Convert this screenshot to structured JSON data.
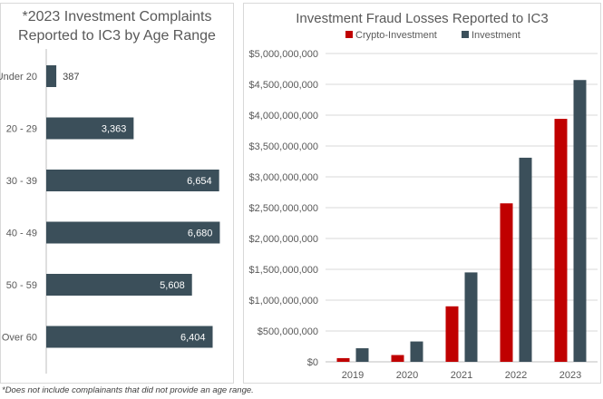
{
  "chart_data": [
    {
      "type": "bar",
      "orientation": "horizontal",
      "title": "*2023 Investment Complaints Reported to IC3 by Age Range",
      "categories": [
        "Under 20",
        "20 - 29",
        "30 - 39",
        "40 - 49",
        "50 - 59",
        "Over 60"
      ],
      "values": [
        387,
        3363,
        6654,
        6680,
        5608,
        6404
      ],
      "data_labels": [
        "387",
        "3,363",
        "6,654",
        "6,680",
        "5,608",
        "6,404"
      ],
      "xlim": [
        0,
        6700
      ],
      "grid": false,
      "colors": {
        "bar": "#3b4f5a"
      }
    },
    {
      "type": "bar",
      "title": "Investment Fraud Losses Reported to IC3",
      "categories": [
        "2019",
        "2020",
        "2021",
        "2022",
        "2023"
      ],
      "series": [
        {
          "name": "Crypto-Investment",
          "color": "#c00000",
          "values": [
            60000000,
            110000000,
            900000000,
            2570000000,
            3940000000
          ]
        },
        {
          "name": "Investment",
          "color": "#3b4f5a",
          "values": [
            220000000,
            330000000,
            1450000000,
            3310000000,
            4570000000
          ]
        }
      ],
      "ylim": [
        0,
        5000000000
      ],
      "yticks": [
        "$0",
        "$500,000,000",
        "$1,000,000,000",
        "$1,500,000,000",
        "$2,000,000,000",
        "$2,500,000,000",
        "$3,000,000,000",
        "$3,500,000,000",
        "$4,000,000,000",
        "$4,500,000,000",
        "$5,000,000,000"
      ],
      "grid": true,
      "legend": "top"
    }
  ],
  "footnote": "*Does not include complainants that did not provide an age range."
}
